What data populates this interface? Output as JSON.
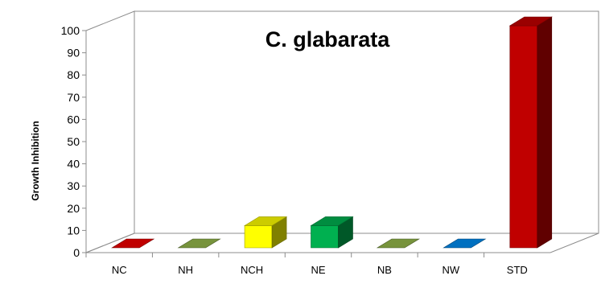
{
  "chart_data": {
    "type": "bar",
    "title": "C. glabarata",
    "xlabel": "",
    "ylabel": "Growth Inhibition",
    "categories": [
      "NC",
      "NH",
      "NCH",
      "NE",
      "NB",
      "NW",
      "STD"
    ],
    "values": [
      0,
      0,
      10,
      10,
      0,
      0,
      100
    ],
    "ylim": [
      0,
      100
    ],
    "yticks": [
      0,
      10,
      20,
      30,
      40,
      50,
      60,
      70,
      80,
      90,
      100
    ],
    "bar_colors": [
      "#c00000",
      "#77933c",
      "#ffff00",
      "#00b050",
      "#77933c",
      "#0070c0",
      "#c00000"
    ],
    "style": "3d-column",
    "grid": false,
    "legend": "none"
  }
}
